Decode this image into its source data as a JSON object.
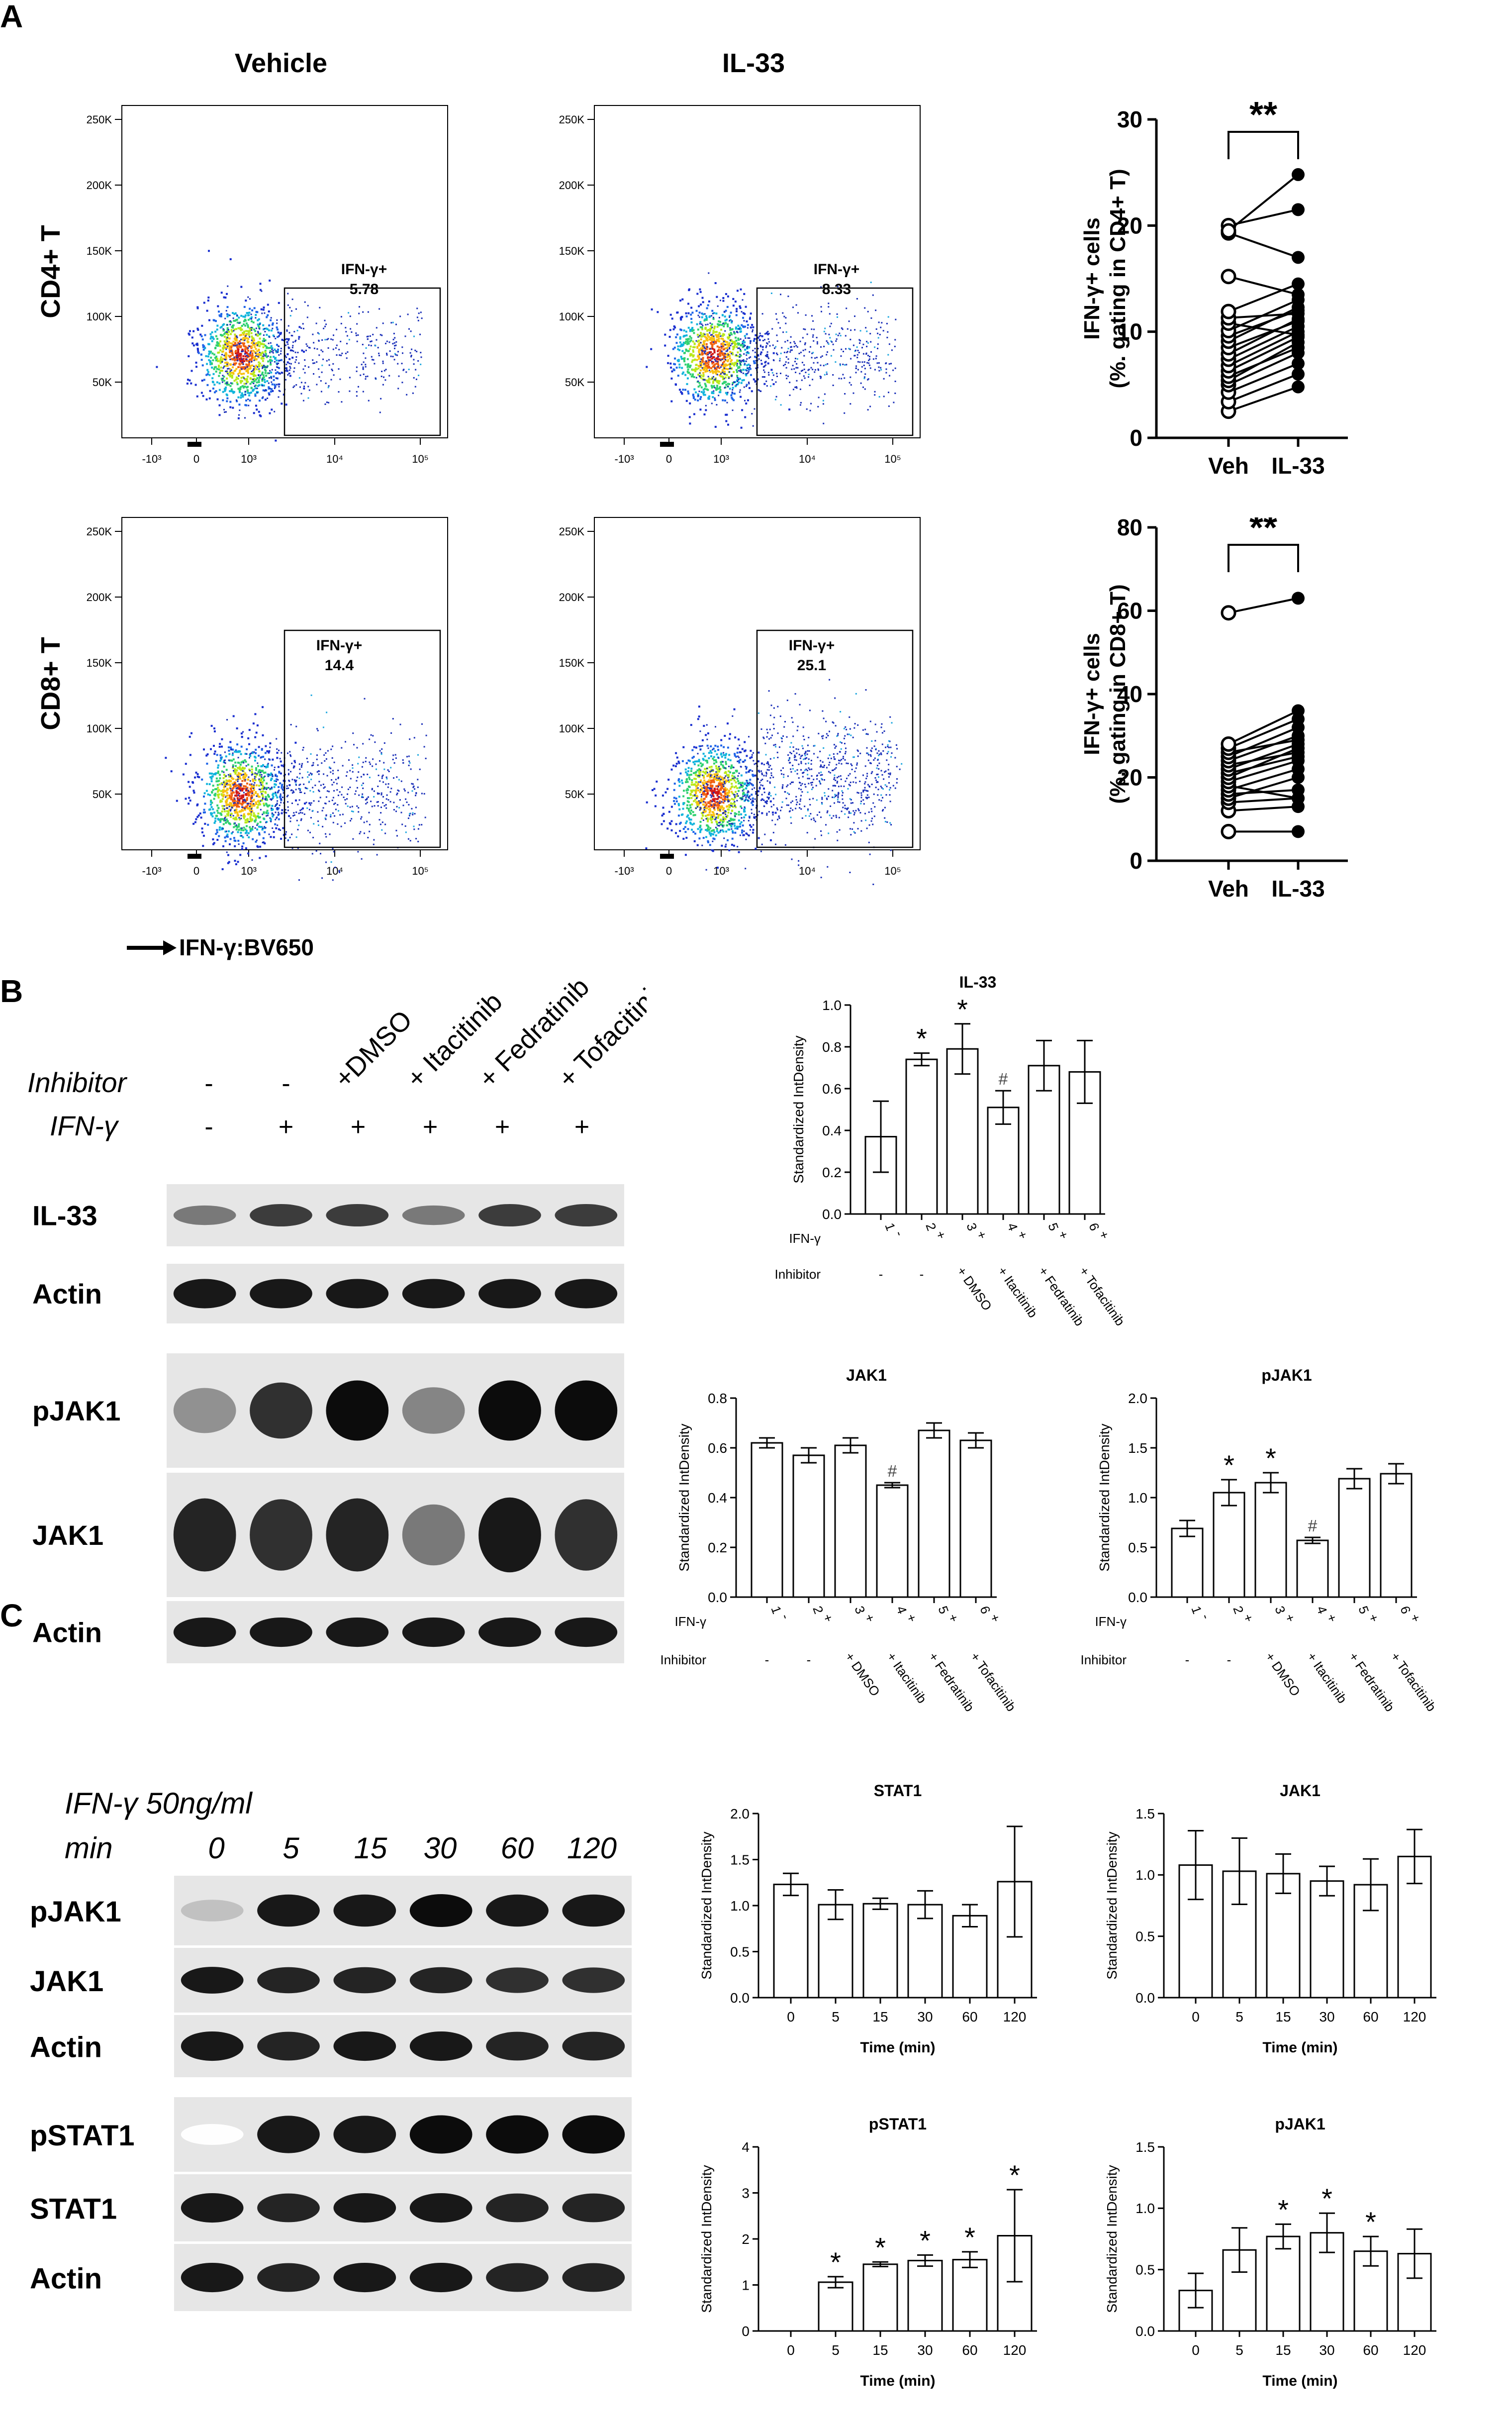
{
  "panels": {
    "A": "A",
    "B": "B",
    "C": "C"
  },
  "panelA": {
    "col_titles": [
      "Vehicle",
      "IL-33"
    ],
    "row_labels": [
      "CD4+ T",
      "CD8+ T"
    ],
    "gate_label": "IFN-γ+",
    "gate_values": [
      [
        "5.78",
        "8.33"
      ],
      [
        "14.4",
        "25.1"
      ]
    ],
    "y_ticks": [
      "250K",
      "200K",
      "150K",
      "100K",
      "50K"
    ],
    "x_ticks": [
      "-10³",
      "0",
      "10³",
      "10⁴",
      "10⁵"
    ],
    "x_axis_label": "IFN-γ:BV650"
  },
  "panelB": {
    "lane_headers": [
      "+DMSO",
      "+ Itacitinib",
      "+ Fedratinib",
      "+ Tofacitinib"
    ],
    "inhibitor_label": "Inhibitor",
    "ifn_label": "IFN-γ",
    "inhibitor_signs": [
      "-",
      "-"
    ],
    "ifn_signs": [
      "-",
      "+",
      "+",
      "+",
      "+",
      "+"
    ],
    "blot_labels": [
      "IL-33",
      "Actin",
      "pJAK1",
      "JAK1",
      "Actin"
    ]
  },
  "panelC": {
    "treatment": "IFN-γ 50ng/ml",
    "min_label": "min",
    "times": [
      "0",
      "5",
      "15",
      "30",
      "60",
      "120"
    ],
    "blot_labels": [
      "pJAK1",
      "JAK1",
      "Actin",
      "pSTAT1",
      "STAT1",
      "Actin"
    ]
  },
  "chart_data": [
    {
      "type": "scatter",
      "id": "cd4",
      "ylabel_lines": [
        "IFN-γ+ cells",
        "(%. gating in CD4+ T)"
      ],
      "categories": [
        "Veh",
        "IL-33"
      ],
      "ylim": [
        0,
        30
      ],
      "yticks": [
        0,
        10,
        20,
        30
      ],
      "sig": "**",
      "pairs": [
        [
          2.5,
          4.8
        ],
        [
          3.4,
          6.0
        ],
        [
          4.3,
          7.0
        ],
        [
          5.0,
          8.0
        ],
        [
          5.4,
          9.0
        ],
        [
          5.8,
          8.5
        ],
        [
          6.3,
          9.5
        ],
        [
          6.8,
          10.0
        ],
        [
          7.4,
          10.5
        ],
        [
          7.9,
          11.2
        ],
        [
          8.5,
          11.0
        ],
        [
          9.1,
          12.3
        ],
        [
          9.6,
          12.0
        ],
        [
          10.1,
          13.0
        ],
        [
          10.8,
          9.7
        ],
        [
          11.3,
          11.7
        ],
        [
          11.9,
          14.5
        ],
        [
          15.2,
          13.5
        ],
        [
          19.3,
          17.0
        ],
        [
          20.0,
          21.5
        ],
        [
          19.5,
          24.8
        ]
      ]
    },
    {
      "type": "scatter",
      "id": "cd8",
      "ylabel_lines": [
        "IFN-γ+ cells",
        "(%. gating in CD8+ T)"
      ],
      "categories": [
        "Veh",
        "IL-33"
      ],
      "ylim": [
        0,
        80
      ],
      "yticks": [
        0,
        20,
        40,
        60,
        80
      ],
      "sig": "**",
      "pairs": [
        [
          7.0,
          7.0
        ],
        [
          12.0,
          13.0
        ],
        [
          14.0,
          15.0
        ],
        [
          15.0,
          20.0
        ],
        [
          16.0,
          17.0
        ],
        [
          17.0,
          22.0
        ],
        [
          18.0,
          15.0
        ],
        [
          19.0,
          24.0
        ],
        [
          20.0,
          27.0
        ],
        [
          21.0,
          25.0
        ],
        [
          22.0,
          28.0
        ],
        [
          23.0,
          26.0
        ],
        [
          24.0,
          30.0
        ],
        [
          25.0,
          32.0
        ],
        [
          26.0,
          29.0
        ],
        [
          27.0,
          34.0
        ],
        [
          28.0,
          36.0
        ],
        [
          59.5,
          63.0
        ]
      ]
    },
    {
      "type": "bar",
      "id": "b_il33",
      "title": "IL-33",
      "ylabel": "Standardized IntDensity",
      "ylim": [
        0,
        1.0
      ],
      "yticks": [
        "0.0",
        "0.2",
        "0.4",
        "0.6",
        "0.8",
        "1.0"
      ],
      "values": [
        0.37,
        0.74,
        0.79,
        0.51,
        0.71,
        0.68
      ],
      "errors": [
        0.17,
        0.03,
        0.12,
        0.08,
        0.12,
        0.15
      ],
      "marks": [
        "",
        "*",
        "*",
        "#",
        "",
        ""
      ],
      "lanes": [
        "1",
        "2",
        "3",
        "4",
        "5",
        "6"
      ],
      "ifn": [
        "-",
        "+",
        "+",
        "+",
        "+",
        "+"
      ],
      "inhibitor": [
        "-",
        "-",
        "+ DMSO",
        "+ Itacitinib",
        "+ Fedratinib",
        "+ Tofacitinib"
      ]
    },
    {
      "type": "bar",
      "id": "b_jak1",
      "title": "JAK1",
      "ylabel": "Standardized IntDensity",
      "ylim": [
        0,
        0.8
      ],
      "yticks": [
        "0.0",
        "0.2",
        "0.4",
        "0.6",
        "0.8"
      ],
      "values": [
        0.62,
        0.57,
        0.61,
        0.45,
        0.67,
        0.63
      ],
      "errors": [
        0.02,
        0.03,
        0.03,
        0.01,
        0.03,
        0.03
      ],
      "marks": [
        "",
        "",
        "",
        "#",
        "",
        ""
      ],
      "lanes": [
        "1",
        "2",
        "3",
        "4",
        "5",
        "6"
      ],
      "ifn": [
        "-",
        "+",
        "+",
        "+",
        "+",
        "+"
      ],
      "inhibitor": [
        "-",
        "-",
        "+ DMSO",
        "+ Itacitinib",
        "+ Fedratinib",
        "+ Tofacitinib"
      ]
    },
    {
      "type": "bar",
      "id": "b_pjak1",
      "title": "pJAK1",
      "ylabel": "Standardized IntDensity",
      "ylim": [
        0,
        2.0
      ],
      "yticks": [
        "0.0",
        "0.5",
        "1.0",
        "1.5",
        "2.0"
      ],
      "values": [
        0.69,
        1.05,
        1.15,
        0.57,
        1.19,
        1.24
      ],
      "errors": [
        0.08,
        0.13,
        0.1,
        0.03,
        0.1,
        0.1
      ],
      "marks": [
        "",
        "*",
        "*",
        "#",
        "",
        ""
      ],
      "lanes": [
        "1",
        "2",
        "3",
        "4",
        "5",
        "6"
      ],
      "ifn": [
        "-",
        "+",
        "+",
        "+",
        "+",
        "+"
      ],
      "inhibitor": [
        "-",
        "-",
        "+ DMSO",
        "+ Itacitinib",
        "+ Fedratinib",
        "+ Tofacitinib"
      ]
    },
    {
      "type": "bar",
      "id": "c_stat1",
      "title": "STAT1",
      "ylabel": "Standardized IntDensity",
      "xlabel": "Time (min)",
      "ylim": [
        0,
        2.0
      ],
      "yticks": [
        "0.0",
        "0.5",
        "1.0",
        "1.5",
        "2.0"
      ],
      "values": [
        1.23,
        1.01,
        1.02,
        1.01,
        0.89,
        1.26
      ],
      "errors": [
        0.12,
        0.16,
        0.06,
        0.15,
        0.12,
        0.6
      ],
      "marks": [
        "",
        "",
        "",
        "",
        "",
        ""
      ],
      "categories": [
        "0",
        "5",
        "15",
        "30",
        "60",
        "120"
      ]
    },
    {
      "type": "bar",
      "id": "c_jak1",
      "title": "JAK1",
      "ylabel": "Standardized IntDensity",
      "xlabel": "Time (min)",
      "ylim": [
        0,
        1.5
      ],
      "yticks": [
        "0.0",
        "0.5",
        "1.0",
        "1.5"
      ],
      "values": [
        1.08,
        1.03,
        1.01,
        0.95,
        0.92,
        1.15
      ],
      "errors": [
        0.28,
        0.27,
        0.16,
        0.12,
        0.21,
        0.22
      ],
      "marks": [
        "",
        "",
        "",
        "",
        "",
        ""
      ],
      "categories": [
        "0",
        "5",
        "15",
        "30",
        "60",
        "120"
      ]
    },
    {
      "type": "bar",
      "id": "c_pstat1",
      "title": "pSTAT1",
      "ylabel": "Standardized IntDensity",
      "xlabel": "Time (min)",
      "ylim": [
        0,
        4
      ],
      "yticks": [
        "0",
        "1",
        "2",
        "3",
        "4"
      ],
      "values": [
        0,
        1.06,
        1.45,
        1.53,
        1.55,
        2.07
      ],
      "errors": [
        0,
        0.12,
        0.05,
        0.12,
        0.17,
        1.0
      ],
      "marks": [
        "",
        "*",
        "*",
        "*",
        "*",
        "*"
      ],
      "categories": [
        "0",
        "5",
        "15",
        "30",
        "60",
        "120"
      ]
    },
    {
      "type": "bar",
      "id": "c_pjak1",
      "title": "pJAK1",
      "ylabel": "Standardized IntDensity",
      "xlabel": "Time (min)",
      "ylim": [
        0,
        1.5
      ],
      "yticks": [
        "0.0",
        "0.5",
        "1.0",
        "1.5"
      ],
      "values": [
        0.33,
        0.66,
        0.77,
        0.8,
        0.65,
        0.63
      ],
      "errors": [
        0.14,
        0.18,
        0.1,
        0.16,
        0.12,
        0.2
      ],
      "marks": [
        "",
        "",
        "*",
        "*",
        "*",
        ""
      ],
      "categories": [
        "0",
        "5",
        "15",
        "30",
        "60",
        "120"
      ]
    }
  ]
}
